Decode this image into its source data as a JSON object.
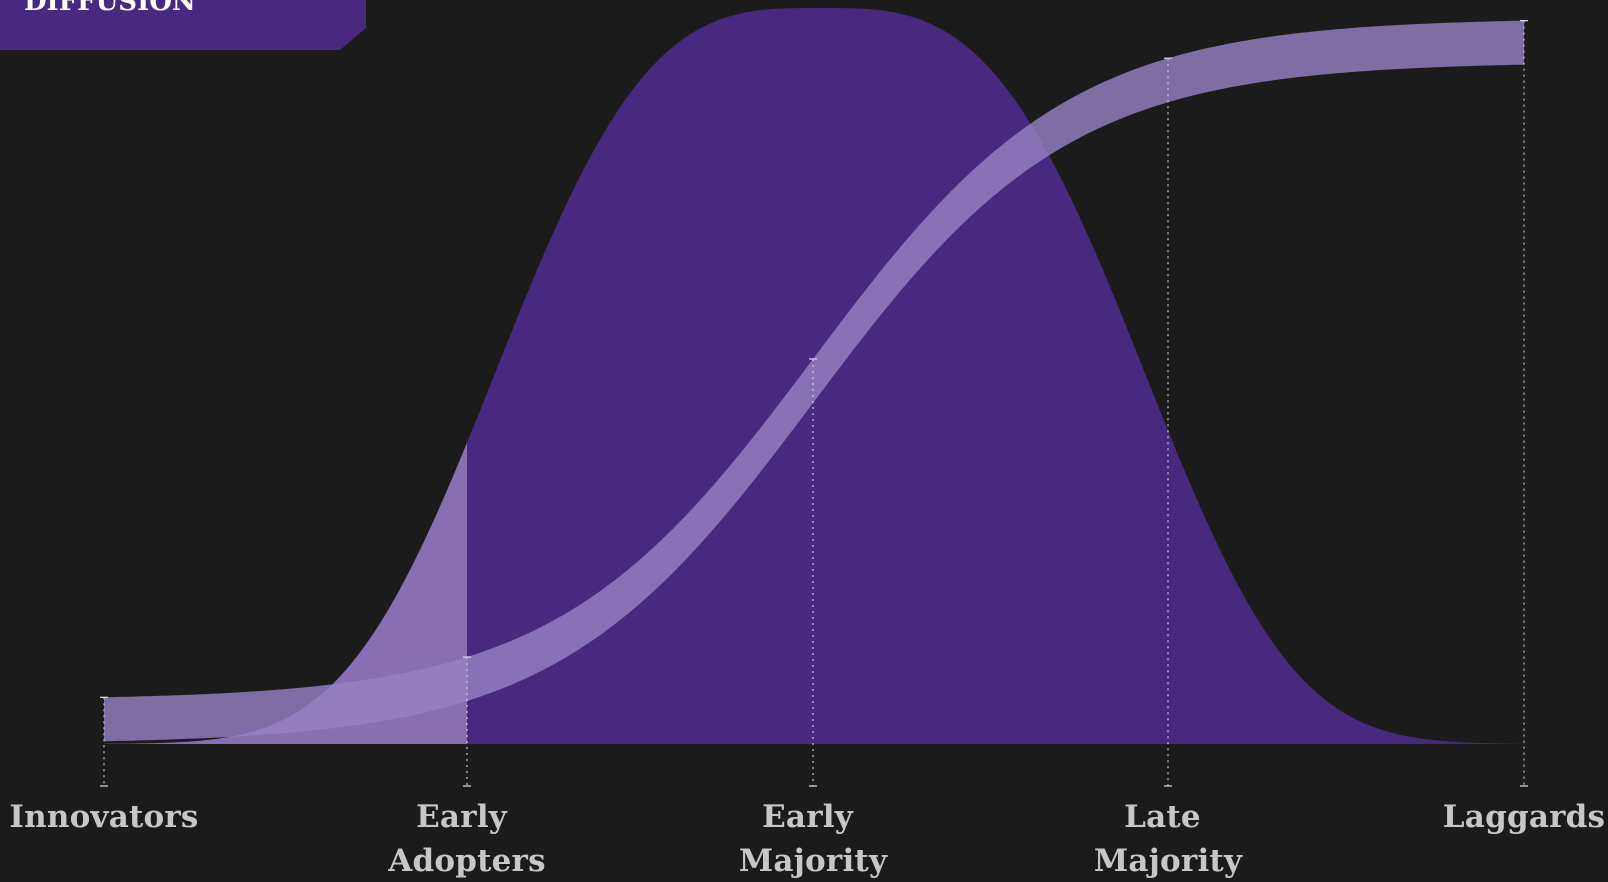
{
  "title": "DIFFUSION",
  "stages": [
    {
      "lines": [
        "Innovators"
      ]
    },
    {
      "lines": [
        "Early",
        "Adopters"
      ]
    },
    {
      "lines": [
        "Early",
        "Majority"
      ]
    },
    {
      "lines": [
        "Late",
        "Majority"
      ]
    },
    {
      "lines": [
        "Laggards"
      ]
    }
  ],
  "colors": {
    "background": "#1b1b1b",
    "bell": "#472a80",
    "bell_highlight": "#8b73b4",
    "s_curve": "#9581c3",
    "title_tag": "#472a80",
    "text": "#c8c6c9",
    "title_text": "#ffffff",
    "dotted_line": "#d8d3e6"
  }
}
